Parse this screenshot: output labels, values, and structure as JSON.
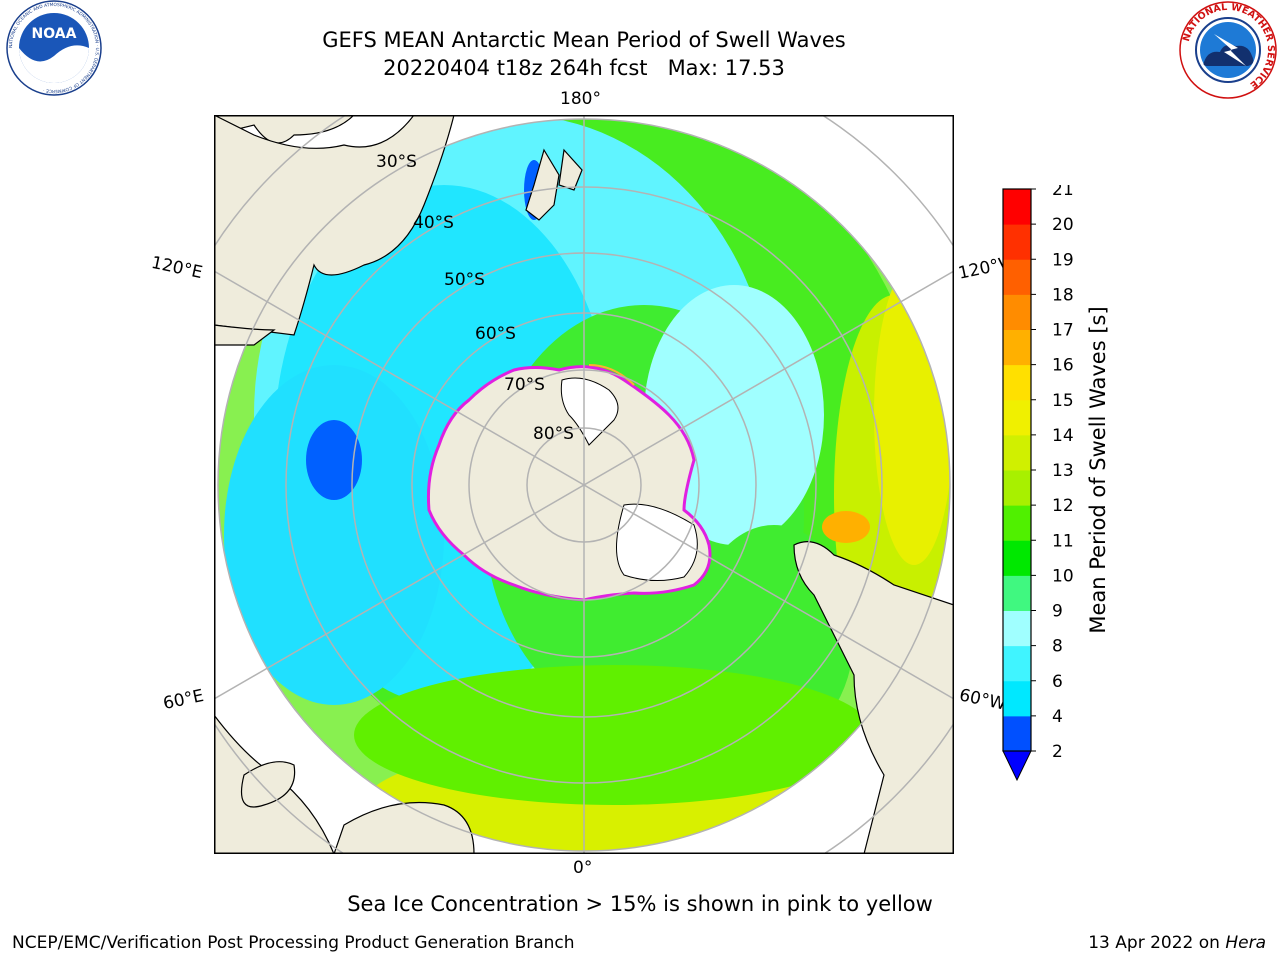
{
  "title_line1": "GEFS MEAN Antarctic Mean Period of Swell Waves",
  "title_line2": "20220404 t18z 264h fcst   Max: 17.53",
  "note": "Sea Ice Concentration > 15% is shown in pink to yellow",
  "footer_left": "NCEP/EMC/Verification Post Processing Product Generation Branch",
  "footer_date": "13 Apr 2022 on",
  "footer_machine": "Hera",
  "logos": {
    "noaa_text": "NOAA",
    "noaa_ring_text": "NATIONAL OCEANIC AND ATMOSPHERIC ADMINISTRATION · U.S. DEPARTMENT OF COMMERCE ·",
    "nws_ring_text": "NATIONAL WEATHER SERVICE"
  },
  "map": {
    "projection": "south-polar-stereographic",
    "longitude_labels": {
      "top": "180°",
      "bottom": "0°",
      "upper_left": "120°E",
      "lower_left": "60°E",
      "upper_right": "120°W",
      "lower_right": "60°W"
    },
    "latitude_labels": [
      "30°S",
      "40°S",
      "50°S",
      "60°S",
      "70°S",
      "80°S"
    ],
    "colors": {
      "land": "#efecdc",
      "grid": "#b3b3b3",
      "coast": "#000000",
      "ice_edge": "#e020e0"
    }
  },
  "colorbar": {
    "label": "Mean Period of Swell Waves [s]",
    "ticks": [
      "2",
      "4",
      "6",
      "8",
      "9",
      "10",
      "11",
      "12",
      "13",
      "14",
      "15",
      "16",
      "17",
      "18",
      "19",
      "20",
      "21"
    ],
    "colors": [
      "#0050ff",
      "#00e8ff",
      "#40f4ff",
      "#a0ffff",
      "#40f880",
      "#00e800",
      "#50f000",
      "#a8f000",
      "#d0f000",
      "#f0f000",
      "#ffe000",
      "#ffb000",
      "#ff8c00",
      "#ff6000",
      "#ff3000",
      "#ff0000"
    ],
    "extend_color": "#0000ff"
  }
}
